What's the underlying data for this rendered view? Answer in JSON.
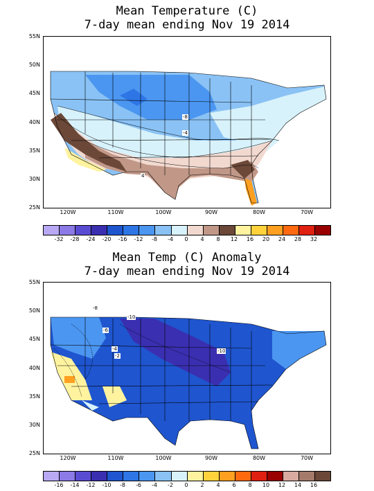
{
  "panels": [
    {
      "title_line1": "Mean Temperature (C)",
      "title_line2": "7-day mean ending Nov 19 2014",
      "lat_labels": [
        "55N",
        "50N",
        "45N",
        "40N",
        "35N",
        "30N",
        "25N"
      ],
      "lon_labels": [
        "120W",
        "110W",
        "100W",
        "90W",
        "80W",
        "70W"
      ],
      "scale_labels": [
        "-32",
        "-28",
        "-24",
        "-20",
        "-16",
        "-12",
        "-8",
        "-4",
        "0",
        "4",
        "8",
        "12",
        "16",
        "20",
        "24",
        "28",
        "32"
      ],
      "scale_colors": [
        "#b9a9f5",
        "#8c7ae6",
        "#5a4cd2",
        "#3a2fb0",
        "#1f55cf",
        "#2e76e6",
        "#4b96f0",
        "#8ac2f5",
        "#d8f2fb",
        "#f2d9d0",
        "#c19888",
        "#6b4838",
        "#fff3a0",
        "#ffd23c",
        "#ffa020",
        "#ff6a10",
        "#e02010",
        "#990000"
      ],
      "contour_tags": [
        "-8",
        "-4",
        "4"
      ]
    },
    {
      "title_line1": "Mean Temp (C) Anomaly",
      "title_line2": "7-day mean ending Nov 19 2014",
      "lat_labels": [
        "55N",
        "50N",
        "45N",
        "40N",
        "35N",
        "30N",
        "25N"
      ],
      "lon_labels": [
        "120W",
        "110W",
        "100W",
        "90W",
        "80W",
        "70W"
      ],
      "scale_labels": [
        "-16",
        "-14",
        "-12",
        "-10",
        "-8",
        "-6",
        "-4",
        "-2",
        "0",
        "2",
        "4",
        "6",
        "8",
        "10",
        "12",
        "14",
        "16"
      ],
      "scale_colors": [
        "#b9a9f5",
        "#8c7ae6",
        "#5a4cd2",
        "#3a2fb0",
        "#1f55cf",
        "#2e76e6",
        "#4b96f0",
        "#8ac2f5",
        "#d8f2fb",
        "#fff3a0",
        "#ffd23c",
        "#ffa020",
        "#ff6a10",
        "#e02010",
        "#990000",
        "#d8aaa0",
        "#a67a6a",
        "#6b4838"
      ],
      "contour_tags": [
        "-8",
        "-10",
        "-6",
        "-4",
        "-2",
        "-10"
      ]
    }
  ]
}
